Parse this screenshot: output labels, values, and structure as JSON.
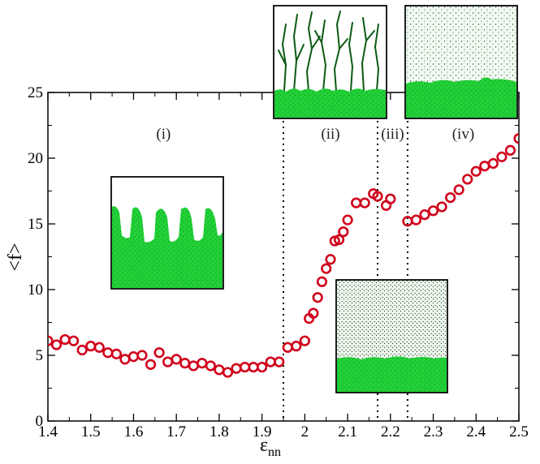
{
  "chart_data": {
    "type": "scatter",
    "title": "",
    "xlabel": "ε",
    "xlabel_subscript": "nn",
    "ylabel": "<f>",
    "xlim": [
      1.4,
      2.5
    ],
    "ylim": [
      0,
      25
    ],
    "x_ticks": [
      "1.4",
      "1.5",
      "1.6",
      "1.7",
      "1.8",
      "1.9",
      "2",
      "2.1",
      "2.2",
      "2.3",
      "2.4",
      "2.5"
    ],
    "y_ticks": [
      "0",
      "5",
      "10",
      "15",
      "20",
      "25"
    ],
    "grid": false,
    "marker": "open-circle",
    "marker_color": "#d0021b",
    "region_boundaries": [
      1.95,
      2.17,
      2.24
    ],
    "region_labels": [
      {
        "text": "(i)",
        "x": 1.67
      },
      {
        "text": "(ii)",
        "x": 2.06
      },
      {
        "text": "(iii)",
        "x": 2.205
      },
      {
        "text": "(iv)",
        "x": 2.37
      }
    ],
    "series": [
      {
        "x": [
          1.4,
          1.42,
          1.44,
          1.46,
          1.48,
          1.5,
          1.52,
          1.54,
          1.56,
          1.58,
          1.6,
          1.62,
          1.64,
          1.66,
          1.68,
          1.7,
          1.72,
          1.74,
          1.76,
          1.78,
          1.8,
          1.82,
          1.84,
          1.86,
          1.88,
          1.9,
          1.92,
          1.94,
          1.96,
          1.98,
          2.0,
          2.01,
          2.02,
          2.03,
          2.04,
          2.05,
          2.06,
          2.07,
          2.08,
          2.09,
          2.1,
          2.12,
          2.14,
          2.16,
          2.17,
          2.19,
          2.2,
          2.24,
          2.26,
          2.28,
          2.3,
          2.32,
          2.34,
          2.36,
          2.38,
          2.4,
          2.42,
          2.44,
          2.46,
          2.48,
          2.5
        ],
        "y": [
          6.1,
          5.8,
          6.2,
          6.1,
          5.4,
          5.7,
          5.6,
          5.2,
          5.1,
          4.7,
          4.9,
          5.0,
          4.3,
          5.2,
          4.5,
          4.7,
          4.4,
          4.2,
          4.4,
          4.2,
          3.9,
          3.7,
          4.0,
          4.1,
          4.1,
          4.1,
          4.5,
          4.5,
          5.6,
          5.7,
          6.1,
          7.8,
          8.2,
          9.4,
          10.6,
          11.6,
          12.3,
          13.7,
          13.8,
          14.4,
          15.3,
          16.6,
          16.6,
          17.3,
          17.1,
          16.4,
          16.9,
          15.2,
          15.3,
          15.7,
          16.0,
          16.3,
          17.0,
          17.6,
          18.4,
          19.0,
          19.4,
          19.6,
          20.1,
          20.6,
          21.5
        ]
      }
    ]
  },
  "insets": [
    {
      "id": "inset-i",
      "region": "(i)"
    },
    {
      "id": "inset-ii",
      "region": "(ii)"
    },
    {
      "id": "inset-iii",
      "region": "(iii)"
    },
    {
      "id": "inset-iv",
      "region": "(iv)"
    }
  ],
  "colors": {
    "marker": "#d0021b",
    "film_green": "#22d138",
    "film_dark": "#0b6b14",
    "axis": "#000000"
  }
}
